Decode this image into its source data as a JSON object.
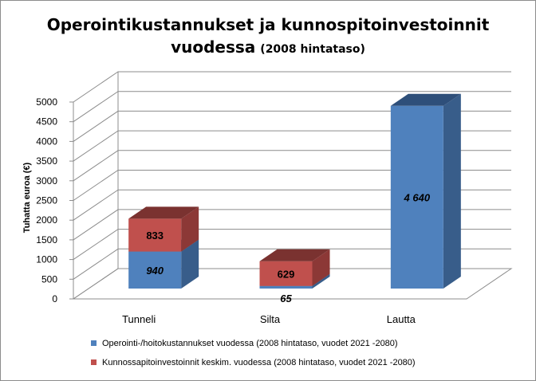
{
  "chart_data": {
    "type": "bar",
    "stacked": true,
    "three_d": true,
    "title_main": "Operointikustannukset ja kunnospitoinvestoinnit",
    "title_line2": "vuodessa",
    "title_suffix": "(2008 hintataso)",
    "ylabel": "Tuhatta euroa (€)",
    "ylim": [
      0,
      5000
    ],
    "yticks": [
      0,
      500,
      1000,
      1500,
      2000,
      2500,
      3000,
      3500,
      4000,
      4500,
      5000
    ],
    "ytick_labels": [
      "0",
      "500",
      "1000",
      "1500",
      "2000",
      "2500",
      "3000",
      "3500",
      "4000",
      "4500",
      "5000"
    ],
    "grid": true,
    "legend_position": "bottom",
    "categories": [
      "Tunneli",
      "Silta",
      "Lautta"
    ],
    "series": [
      {
        "name": "Operointi-/hoitokustannukset vuodessa (2008 hintataso, vuodet 2021 -2080)",
        "values": [
          940,
          65,
          4640
        ],
        "labels": [
          "940",
          "65",
          "4 640"
        ],
        "color": "#4f81bd",
        "side_color": "#385d8a",
        "top_color": "#2e4f7a"
      },
      {
        "name": "Kunnossapitoinvestoinnit keskim. vuodessa (2008 hintataso, vuodet 2021 -2080)",
        "values": [
          833,
          629,
          0
        ],
        "labels": [
          "833",
          "629",
          ""
        ],
        "color": "#c0504d",
        "side_color": "#8c3836",
        "top_color": "#7a3230"
      }
    ]
  }
}
